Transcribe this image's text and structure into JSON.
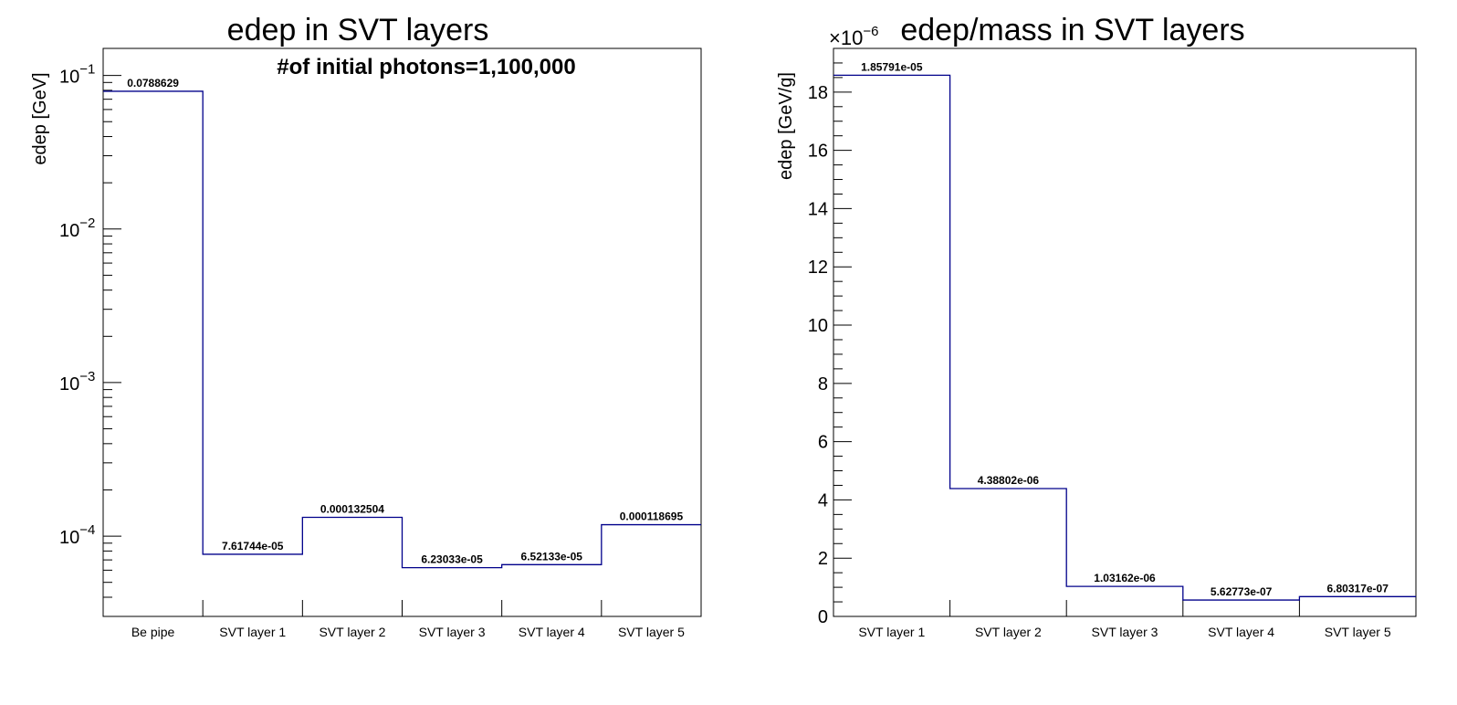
{
  "chart_data": [
    {
      "type": "bar",
      "style": "step-histogram",
      "title": "edep in SVT layers",
      "annotation": "#of initial photons=1,100,000",
      "xlabel": "",
      "ylabel": "edep [GeV]",
      "yscale": "log",
      "ylim": [
        3e-05,
        0.15
      ],
      "y_ticks": [
        {
          "base": "10",
          "exp": "−1",
          "value": 0.1
        },
        {
          "base": "10",
          "exp": "−2",
          "value": 0.01
        },
        {
          "base": "10",
          "exp": "−3",
          "value": 0.001
        },
        {
          "base": "10",
          "exp": "−4",
          "value": 0.0001
        }
      ],
      "categories": [
        "Be pipe",
        "SVT layer 1",
        "SVT layer 2",
        "SVT layer 3",
        "SVT layer 4",
        "SVT layer 5"
      ],
      "values": [
        0.0788629,
        7.61744e-05,
        0.000132504,
        6.23033e-05,
        6.52133e-05,
        0.000118695
      ],
      "value_labels": [
        "0.0788629",
        "7.61744e-05",
        "0.000132504",
        "6.23033e-05",
        "6.52133e-05",
        "0.000118695"
      ],
      "line_color": "#00008b",
      "grid": false,
      "legend": "none"
    },
    {
      "type": "bar",
      "style": "step-histogram",
      "title": "edep/mass in SVT layers",
      "xlabel": "",
      "ylabel": "edep [GeV/g]",
      "yscale": "linear",
      "y_multiplier_base": "×10",
      "y_multiplier_exp": "−6",
      "ylim": [
        0,
        1.95e-05
      ],
      "y_ticks": [
        {
          "label": "0",
          "value": 0
        },
        {
          "label": "2",
          "value": 2e-06
        },
        {
          "label": "4",
          "value": 4e-06
        },
        {
          "label": "6",
          "value": 6e-06
        },
        {
          "label": "8",
          "value": 8e-06
        },
        {
          "label": "10",
          "value": 1e-05
        },
        {
          "label": "12",
          "value": 1.2e-05
        },
        {
          "label": "14",
          "value": 1.4e-05
        },
        {
          "label": "16",
          "value": 1.6e-05
        },
        {
          "label": "18",
          "value": 1.8e-05
        }
      ],
      "categories": [
        "SVT layer 1",
        "SVT layer 2",
        "SVT layer 3",
        "SVT layer 4",
        "SVT layer 5"
      ],
      "values": [
        1.85791e-05,
        4.38802e-06,
        1.03162e-06,
        5.62773e-07,
        6.80317e-07
      ],
      "value_labels": [
        "1.85791e-05",
        "4.38802e-06",
        "1.03162e-06",
        "5.62773e-07",
        "6.80317e-07"
      ],
      "line_color": "#00008b",
      "grid": false,
      "legend": "none"
    }
  ]
}
